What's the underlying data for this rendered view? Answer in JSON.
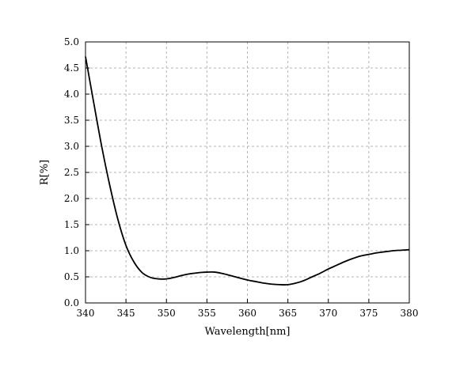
{
  "chart_data": {
    "type": "line",
    "title": "",
    "xlabel": "Wavelength[nm]",
    "ylabel": "R[%]",
    "xlim": [
      340,
      380
    ],
    "ylim": [
      0.0,
      5.0
    ],
    "x_ticks": [
      "340",
      "345",
      "350",
      "355",
      "360",
      "365",
      "370",
      "375",
      "380"
    ],
    "y_ticks": [
      "0.0",
      "0.5",
      "1.0",
      "1.5",
      "2.0",
      "2.5",
      "3.0",
      "3.5",
      "4.0",
      "4.5",
      "5.0"
    ],
    "grid": true,
    "series": [
      {
        "color": "#000000",
        "x": [
          340,
          341,
          342,
          343,
          344,
          345,
          346,
          347,
          348,
          349,
          350,
          351,
          352,
          353,
          354,
          355,
          356,
          357,
          358,
          359,
          360,
          361,
          362,
          363,
          364,
          365,
          366,
          367,
          368,
          369,
          370,
          371,
          372,
          373,
          374,
          375,
          376,
          377,
          378,
          379,
          380
        ],
        "y": [
          4.72,
          3.85,
          3.0,
          2.25,
          1.6,
          1.1,
          0.78,
          0.58,
          0.49,
          0.46,
          0.46,
          0.49,
          0.53,
          0.56,
          0.58,
          0.59,
          0.59,
          0.56,
          0.52,
          0.48,
          0.44,
          0.41,
          0.38,
          0.36,
          0.35,
          0.35,
          0.38,
          0.43,
          0.5,
          0.57,
          0.65,
          0.72,
          0.79,
          0.85,
          0.9,
          0.93,
          0.96,
          0.98,
          1.0,
          1.01,
          1.02
        ]
      }
    ]
  }
}
